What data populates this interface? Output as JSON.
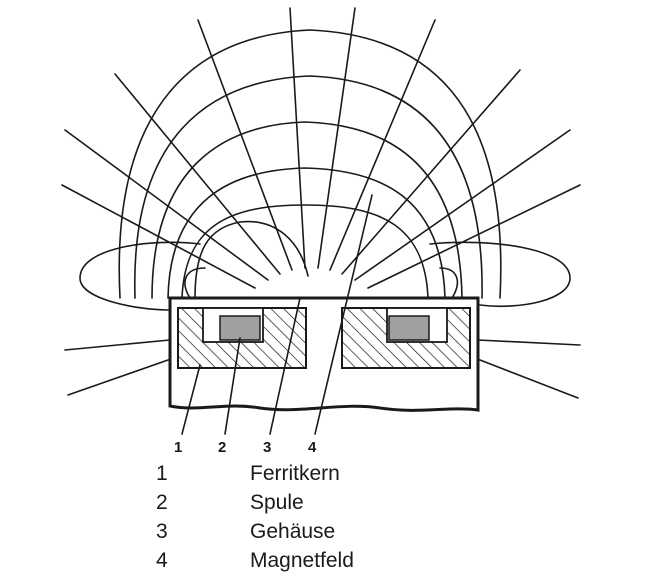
{
  "diagram": {
    "markers": [
      "1",
      "2",
      "3",
      "4"
    ]
  },
  "legend": [
    {
      "number": "1",
      "label": "Ferritkern"
    },
    {
      "number": "2",
      "label": "Spule"
    },
    {
      "number": "3",
      "label": "Gehäuse"
    },
    {
      "number": "4",
      "label": "Magnetfeld"
    }
  ]
}
